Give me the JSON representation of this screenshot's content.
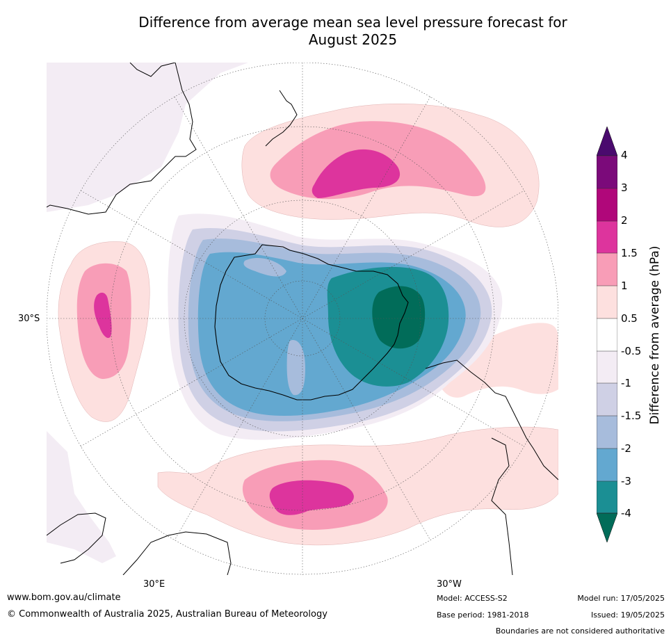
{
  "title": {
    "line1": "Difference from average mean sea level pressure forecast for",
    "line2": "August 2025"
  },
  "map_labels": {
    "lat_left": "30°S",
    "lon_bottom_left": "30°E",
    "lon_bottom_right": "30°W"
  },
  "colorbar": {
    "title": "Difference from average (hPa)",
    "ticks": [
      "4",
      "3",
      "2",
      "1.5",
      "1",
      "0.5",
      "-0.5",
      "-1",
      "-1.5",
      "-2",
      "-3",
      "-4"
    ],
    "colors": {
      "gt4": "#4a0a6e",
      "3to4": "#7b0a7a",
      "2to3": "#b0077a",
      "1.5to2": "#dd349d",
      "1to1.5": "#f89db7",
      "0.5to1": "#fde0df",
      "neutral": "#ffffff",
      "-1to-0.5": "#f3ecf4",
      "-1.5to-1": "#cfd0e5",
      "-2to-1.5": "#a7bcdc",
      "-3to-2": "#63a8d0",
      "-4to-3": "#1b8f94",
      "lt-4": "#016c59"
    }
  },
  "footer": {
    "url": "www.bom.gov.au/climate",
    "copyright": "© Commonwealth of Australia 2025, Australian Bureau of Meteorology",
    "model": "Model: ACCESS-S2",
    "base_period": "Base period: 1981-2018",
    "model_run": "Model run: 17/05/2025",
    "issued": "Issued: 19/05/2025",
    "disclaimer": "Boundaries are not considered authoritative"
  }
}
